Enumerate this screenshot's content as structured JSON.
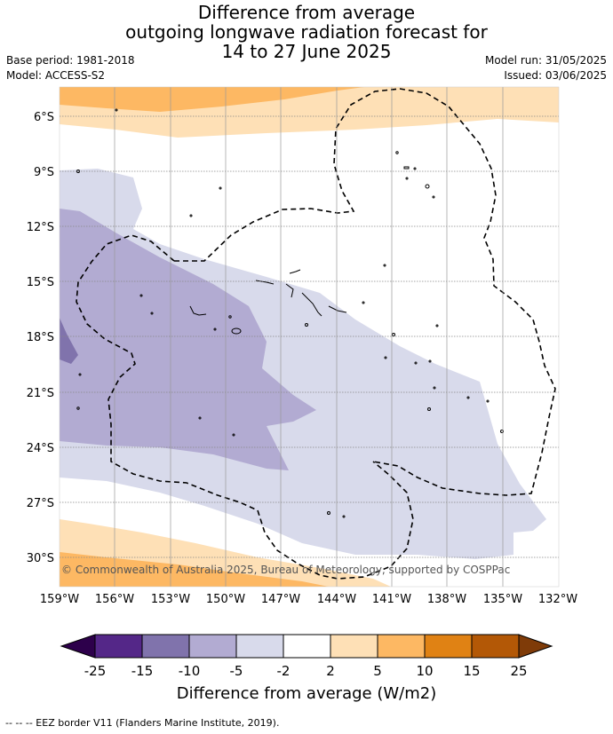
{
  "title": {
    "line1": "Difference from average",
    "line2": "outgoing longwave radiation forecast for",
    "line3": "14 to 27 June 2025"
  },
  "left_meta": {
    "base_period": "Base period: 1981-2018",
    "model": "Model: ACCESS-S2"
  },
  "right_meta": {
    "model_run": "Model run: 31/05/2025",
    "issued": "Issued: 03/06/2025"
  },
  "map": {
    "lat_labels": [
      "6°S",
      "9°S",
      "12°S",
      "15°S",
      "18°S",
      "21°S",
      "24°S",
      "27°S",
      "30°S"
    ],
    "lon_labels": [
      "159°W",
      "156°W",
      "153°W",
      "150°W",
      "147°W",
      "144°W",
      "141°W",
      "138°W",
      "135°W",
      "132°W"
    ],
    "copyright": "© Commonwealth of Australia 2025, Bureau of Meteorology, supported by COSPPac"
  },
  "colorbar": {
    "ticks": [
      "-25",
      "-15",
      "-10",
      "-5",
      "-2",
      "2",
      "5",
      "10",
      "15",
      "25"
    ],
    "colors": [
      "#2d004b",
      "#542788",
      "#8073ac",
      "#b2abd2",
      "#d8daeb",
      "#ffffff",
      "#fee0b6",
      "#fdb863",
      "#e08214",
      "#b35806",
      "#7f3b08"
    ],
    "title": "Difference from average (W/m2)"
  },
  "footer": {
    "legend_text": "--  --  -- EEZ border V11 (Flanders Marine Institute, 2019)."
  }
}
